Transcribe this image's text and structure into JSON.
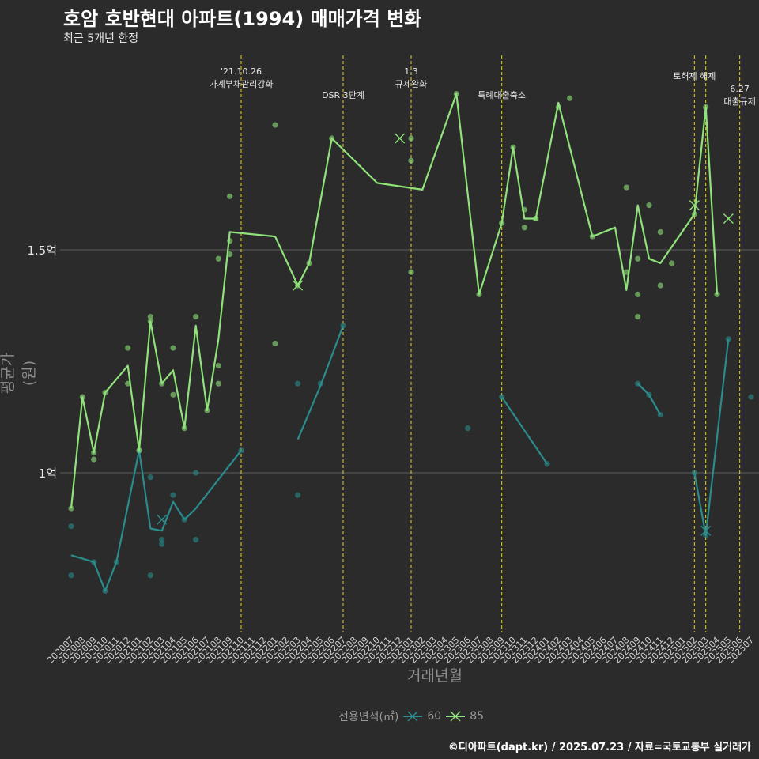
{
  "chart_data": {
    "type": "line",
    "title": "호암 호반현대 아파트(1994) 매매가격 변화",
    "subtitle": "최근 5개년 한정",
    "xlabel": "거래년월",
    "ylabel": "평균가(원)",
    "legend_title": "전용면적(㎡)",
    "caption": "©디아파트(dapt.kr) / 2025.07.23 / 자료=국토교통부 실거래가",
    "yticks": [
      {
        "value": 1.0,
        "label": "1억"
      },
      {
        "value": 1.5,
        "label": "1.5억"
      }
    ],
    "ylim": [
      0.65,
      1.93
    ],
    "months": [
      "202007",
      "202008",
      "202009",
      "202010",
      "202011",
      "202012",
      "202101",
      "202102",
      "202103",
      "202104",
      "202105",
      "202106",
      "202107",
      "202108",
      "202109",
      "202110",
      "202111",
      "202112",
      "202201",
      "202202",
      "202203",
      "202204",
      "202205",
      "202206",
      "202207",
      "202208",
      "202209",
      "202210",
      "202211",
      "202212",
      "202301",
      "202302",
      "202303",
      "202304",
      "202305",
      "202306",
      "202307",
      "202308",
      "202309",
      "202310",
      "202311",
      "202312",
      "202401",
      "202402",
      "202403",
      "202404",
      "202405",
      "202406",
      "202407",
      "202408",
      "202409",
      "202410",
      "202411",
      "202412",
      "202501",
      "202502",
      "202503",
      "202504",
      "202505",
      "202506",
      "202507"
    ],
    "events": [
      {
        "month": "202110",
        "label": "'21.10.26\n가계부채관리강화",
        "row": 0
      },
      {
        "month": "202207",
        "label": "DSR 3단계",
        "row": 1
      },
      {
        "month": "202301",
        "label": "1.3\n규제완화",
        "row": 0
      },
      {
        "month": "202309",
        "label": "특례대출축소",
        "row": 1
      },
      {
        "month": "202502",
        "label": "토허제 해제",
        "row": 0
      },
      {
        "month": "202503",
        "label": "",
        "row": 0
      },
      {
        "month": "202506",
        "label": "6.27\n대출규제",
        "row": 2
      }
    ],
    "series": [
      {
        "name": "60",
        "color": "#2a8c8c",
        "line": [
          [
            [
              "202007",
              0.815
            ],
            [
              "202009",
              0.8
            ],
            [
              "202010",
              0.735
            ],
            [
              "202011",
              0.8
            ],
            [
              "202101",
              1.05
            ],
            [
              "202102",
              0.875
            ],
            [
              "202103",
              0.87
            ],
            [
              "202104",
              0.935
            ],
            [
              "202105",
              0.895
            ],
            [
              "202106",
              0.92
            ],
            [
              "202110",
              1.05
            ]
          ],
          [
            [
              "202203",
              1.075
            ],
            [
              "202204",
              1.135
            ],
            [
              "202205",
              1.195
            ],
            [
              "202207",
              1.33
            ]
          ],
          [
            [
              "202309",
              1.17
            ],
            [
              "202401",
              1.02
            ]
          ],
          [
            [
              "202409",
              1.2
            ],
            [
              "202410",
              1.175
            ],
            [
              "202411",
              1.13
            ]
          ],
          [
            [
              "202502",
              1.0
            ],
            [
              "202503",
              0.86
            ],
            [
              "202505",
              1.3
            ]
          ]
        ],
        "points": [
          [
            "202007",
            0.88
          ],
          [
            "202007",
            0.77
          ],
          [
            "202009",
            0.8
          ],
          [
            "202010",
            0.735
          ],
          [
            "202011",
            0.8
          ],
          [
            "202101",
            1.05
          ],
          [
            "202102",
            0.99
          ],
          [
            "202102",
            0.77
          ],
          [
            "202103",
            0.84
          ],
          [
            "202103",
            0.85
          ],
          [
            "202104",
            0.95
          ],
          [
            "202105",
            0.895
          ],
          [
            "202106",
            1.0
          ],
          [
            "202106",
            0.85
          ],
          [
            "202110",
            1.05
          ],
          [
            "202203",
            1.2
          ],
          [
            "202203",
            0.95
          ],
          [
            "202205",
            1.2
          ],
          [
            "202207",
            1.33
          ],
          [
            "202306",
            1.1
          ],
          [
            "202309",
            1.17
          ],
          [
            "202401",
            1.02
          ],
          [
            "202409",
            1.2
          ],
          [
            "202410",
            1.175
          ],
          [
            "202411",
            1.13
          ],
          [
            "202502",
            1.0
          ],
          [
            "202503",
            0.86
          ],
          [
            "202505",
            1.3
          ],
          [
            "202507",
            1.17
          ]
        ],
        "crosses": [
          [
            "202103",
            0.895
          ],
          [
            "202503",
            0.87
          ]
        ]
      },
      {
        "name": "85",
        "color": "#90e27a",
        "line": [
          [
            [
              "202007",
              0.92
            ],
            [
              "202008",
              1.17
            ],
            [
              "202009",
              1.045
            ],
            [
              "202010",
              1.18
            ],
            [
              "202012",
              1.24
            ],
            [
              "202101",
              1.05
            ],
            [
              "202102",
              1.34
            ],
            [
              "202103",
              1.2
            ],
            [
              "202104",
              1.23
            ],
            [
              "202105",
              1.1
            ],
            [
              "202106",
              1.33
            ],
            [
              "202107",
              1.14
            ],
            [
              "202108",
              1.3
            ],
            [
              "202109",
              1.54
            ],
            [
              "202201",
              1.53
            ],
            [
              "202203",
              1.42
            ],
            [
              "202204",
              1.47
            ],
            [
              "202206",
              1.75
            ],
            [
              "202210",
              1.65
            ],
            [
              "202302",
              1.635
            ],
            [
              "202305",
              1.85
            ],
            [
              "202307",
              1.4
            ],
            [
              "202309",
              1.56
            ],
            [
              "202310",
              1.73
            ],
            [
              "202311",
              1.57
            ],
            [
              "202312",
              1.57
            ],
            [
              "202402",
              1.83
            ],
            [
              "202405",
              1.53
            ],
            [
              "202407",
              1.55
            ],
            [
              "202408",
              1.41
            ],
            [
              "202409",
              1.6
            ],
            [
              "202410",
              1.48
            ],
            [
              "202411",
              1.47
            ],
            [
              "202502",
              1.58
            ],
            [
              "202503",
              1.82
            ],
            [
              "202504",
              1.4
            ]
          ]
        ],
        "points": [
          [
            "202007",
            0.92
          ],
          [
            "202008",
            1.17
          ],
          [
            "202009",
            1.03
          ],
          [
            "202009",
            1.045
          ],
          [
            "202010",
            1.18
          ],
          [
            "202012",
            1.28
          ],
          [
            "202012",
            1.2
          ],
          [
            "202101",
            1.05
          ],
          [
            "202102",
            1.35
          ],
          [
            "202102",
            1.34
          ],
          [
            "202103",
            1.2
          ],
          [
            "202104",
            1.28
          ],
          [
            "202104",
            1.175
          ],
          [
            "202105",
            1.1
          ],
          [
            "202106",
            1.35
          ],
          [
            "202107",
            1.14
          ],
          [
            "202108",
            1.48
          ],
          [
            "202108",
            1.24
          ],
          [
            "202108",
            1.2
          ],
          [
            "202109",
            1.62
          ],
          [
            "202109",
            1.52
          ],
          [
            "202109",
            1.49
          ],
          [
            "202201",
            1.78
          ],
          [
            "202201",
            1.29
          ],
          [
            "202203",
            1.42
          ],
          [
            "202204",
            1.47
          ],
          [
            "202206",
            1.75
          ],
          [
            "202301",
            1.75
          ],
          [
            "202301",
            1.7
          ],
          [
            "202301",
            1.45
          ],
          [
            "202305",
            1.85
          ],
          [
            "202307",
            1.4
          ],
          [
            "202309",
            1.56
          ],
          [
            "202310",
            1.73
          ],
          [
            "202311",
            1.59
          ],
          [
            "202311",
            1.55
          ],
          [
            "202312",
            1.57
          ],
          [
            "202312",
            1.57
          ],
          [
            "202402",
            1.82
          ],
          [
            "202403",
            1.84
          ],
          [
            "202405",
            1.53
          ],
          [
            "202408",
            1.64
          ],
          [
            "202408",
            1.45
          ],
          [
            "202409",
            1.48
          ],
          [
            "202409",
            1.4
          ],
          [
            "202409",
            1.35
          ],
          [
            "202410",
            1.6
          ],
          [
            "202411",
            1.54
          ],
          [
            "202411",
            1.42
          ],
          [
            "202412",
            1.47
          ],
          [
            "202502",
            1.58
          ],
          [
            "202503",
            1.82
          ],
          [
            "202504",
            1.4
          ]
        ],
        "crosses": [
          [
            "202212",
            1.75
          ],
          [
            "202203",
            1.42
          ],
          [
            "202502",
            1.6
          ],
          [
            "202505",
            1.57
          ]
        ]
      }
    ]
  }
}
